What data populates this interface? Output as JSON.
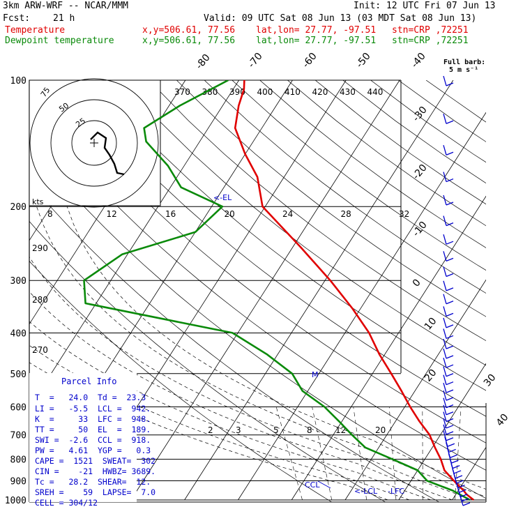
{
  "header": {
    "model": "3km ARW-WRF -- NCAR/MMM",
    "init": "Init: 12 UTC Fri 07 Jun 13",
    "fcst_label": "Fcst:",
    "fcst_value": "21 h",
    "valid": "Valid: 09 UTC Sat 08 Jun 13 (03 MDT Sat 08 Jun 13)"
  },
  "legend": [
    {
      "label": "Temperature",
      "xy": "x,y=506.61, 77.56",
      "latlon": "lat,lon= 27.77, -97.51",
      "stn": "stn=CRP ,72251",
      "color": "#e00000"
    },
    {
      "label": "Dewpoint temperature",
      "xy": "x,y=506.61, 77.56",
      "latlon": "lat,lon= 27.77, -97.51",
      "stn": "stn=CRP ,72251",
      "color": "#0a8a0a"
    }
  ],
  "barb_note": {
    "line1": "Full barb:",
    "line2": "5 m s⁻¹"
  },
  "chart_data": {
    "type": "line",
    "chart_kind": "skew-T log-p sounding",
    "y_axis": {
      "scale": "log",
      "ticks": [
        100,
        200,
        300,
        400,
        500,
        600,
        700,
        800,
        900,
        1000
      ]
    },
    "temperature_line_labels": [
      "-80",
      "-70",
      "-60",
      "-50",
      "-40",
      "-30",
      "-20",
      "-10",
      "0",
      "10",
      "20",
      "30",
      "40"
    ],
    "dry_adiabat_labels": [
      "370",
      "380",
      "390",
      "400",
      "410",
      "420",
      "430",
      "440"
    ],
    "theta_side_labels": [
      "290",
      "280",
      "270"
    ],
    "mixing_ratio_top_labels": [
      "8",
      "12",
      "16",
      "20",
      "24",
      "28",
      "32"
    ],
    "mixing_ratio_bottom_labels": [
      "2",
      "3",
      "5",
      "8",
      "12",
      "20"
    ],
    "series": [
      {
        "name": "Temperature",
        "color": "#e00000",
        "points": [
          [
            1000,
            24.0
          ],
          [
            970,
            22.0
          ],
          [
            950,
            21.0
          ],
          [
            900,
            18.0
          ],
          [
            850,
            15.0
          ],
          [
            800,
            13.0
          ],
          [
            750,
            10.5
          ],
          [
            700,
            8.0
          ],
          [
            650,
            4.5
          ],
          [
            600,
            1.0
          ],
          [
            550,
            -2.5
          ],
          [
            500,
            -6.5
          ],
          [
            450,
            -11.0
          ],
          [
            400,
            -15.5
          ],
          [
            350,
            -21.5
          ],
          [
            300,
            -29.0
          ],
          [
            250,
            -38.5
          ],
          [
            200,
            -50.5
          ],
          [
            170,
            -55.0
          ],
          [
            150,
            -60.0
          ],
          [
            130,
            -65.0
          ],
          [
            115,
            -67.0
          ],
          [
            105,
            -68.0
          ],
          [
            100,
            -69.0
          ]
        ]
      },
      {
        "name": "Dewpoint temperature",
        "color": "#0a8a0a",
        "points": [
          [
            1000,
            23.3
          ],
          [
            950,
            19.0
          ],
          [
            900,
            13.0
          ],
          [
            850,
            10.0
          ],
          [
            800,
            4.0
          ],
          [
            750,
            -2.5
          ],
          [
            700,
            -6.5
          ],
          [
            650,
            -10.5
          ],
          [
            600,
            -15.0
          ],
          [
            550,
            -21.0
          ],
          [
            500,
            -25.0
          ],
          [
            450,
            -32.0
          ],
          [
            400,
            -41.0
          ],
          [
            340,
            -72.0
          ],
          [
            300,
            -75.0
          ],
          [
            260,
            -71.0
          ],
          [
            230,
            -60.0
          ],
          [
            200,
            -58.0
          ],
          [
            180,
            -68.0
          ],
          [
            160,
            -73.0
          ],
          [
            140,
            -80.0
          ],
          [
            130,
            -82.0
          ],
          [
            115,
            -78.0
          ],
          [
            100,
            -72.0
          ]
        ]
      }
    ]
  },
  "annotations": {
    "el": "<-EL",
    "lcl": "<-LCL",
    "lfc": "-LFC",
    "ccl": "CCL",
    "m": "M"
  },
  "hodograph": {
    "units": "kts",
    "rings": [
      "75",
      "50",
      "25"
    ]
  },
  "parcel_info": {
    "title": "Parcel Info",
    "rows": [
      "T  =   24.0  Td =  23.3",
      "LI =   -5.5  LCL =  942.",
      "K  =     33  LFC =  948.",
      "TT =     50  EL  =  189.",
      "SWI =  -2.6  CCL =  918.",
      "PW =   4.61  YGP =   0.3",
      "CAPE =  1521  SWEAT=  302",
      "CIN =    -21  HWBZ= 3689.",
      "Tc =   28.2  SHEAR=  12.",
      "SREH =    59  LAPSE=  7.0",
      "CELL = 304/12"
    ]
  },
  "wind_barbs": {
    "count": 40
  }
}
